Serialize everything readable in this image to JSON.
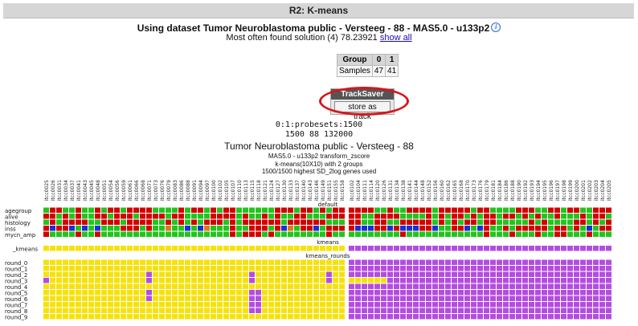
{
  "window": {
    "title": "R2: K-means"
  },
  "dataset": {
    "text": "Using dataset Tumor Neuroblastoma public - Versteeg - 88 - MAS5.0 - u133p2",
    "info_icon": "info-icon"
  },
  "solution": {
    "text": "Most often found solution (4) 78.23921",
    "link": "show all"
  },
  "group_table": {
    "headers": [
      "Group",
      "0",
      "1"
    ],
    "row_label": "Samples",
    "values": [
      "47",
      "41"
    ]
  },
  "tracksaver": {
    "title": "TrackSaver",
    "button": "store as track",
    "highlight_color": "#d6161c"
  },
  "probesets_line": "0:1:probesets:1500",
  "counts_line": "1500 88 132000",
  "heatmap": {
    "title": "Tumor Neuroblastoma public - Versteeg - 88",
    "subtitle1": "MAS5.0 - u133p2 transform_zscore",
    "subtitle2": "k-means(10X10) with 2 groups",
    "subtitle3": "1500/1500 highest SD_2log genes used",
    "section_default": "default",
    "section_kmeans": "kmeans",
    "section_rounds": "kmeans_rounds",
    "track_labels_default": [
      "agegroup",
      "alive",
      "histology",
      "inss",
      "mycn_amp"
    ],
    "track_label_kmeans": "_kmeans",
    "round_labels": [
      "round_0",
      "round_1",
      "round_2",
      "round_3",
      "round_4",
      "round_5",
      "round_6",
      "round_7",
      "round_8",
      "round_9"
    ],
    "colors": {
      "red": "#d40000",
      "green": "#22c51c",
      "yellow": "#f5e20a",
      "purple": "#b34de0",
      "blue": "#1930d8",
      "orange": "#e07a1a",
      "group_split_index": 47
    },
    "sample_ids": [
      "itcc0025",
      "itcc0026",
      "itcc0031",
      "itcc0034",
      "itcc0037",
      "itcc0041",
      "itcc0043",
      "itcc0045",
      "itcc0048",
      "itcc0051",
      "itcc0054",
      "itcc0056",
      "itcc0059",
      "itcc0061",
      "itcc0066",
      "itcc0068",
      "itcc0071",
      "itcc0073",
      "itcc0076",
      "itcc0079",
      "itcc0083",
      "itcc0086",
      "itcc0088",
      "itcc0091",
      "itcc0094",
      "itcc0097",
      "itcc0100",
      "itcc0102",
      "itcc0105",
      "itcc0107",
      "itcc0110",
      "itcc0113",
      "itcc0115",
      "itcc0118",
      "itcc0121",
      "itcc0124",
      "itcc0127",
      "itcc0130",
      "itcc0133",
      "itcc0137",
      "itcc0140",
      "itcc0143",
      "itcc0146",
      "itcc0149",
      "itcc0151",
      "itcc0155",
      "itcc0158",
      "itcc0102",
      "itcc0104",
      "itcc0111",
      "itcc0114",
      "itcc0120",
      "itcc0126",
      "itcc0131",
      "itcc0134",
      "itcc0138",
      "itcc0141",
      "itcc0144",
      "itcc0148",
      "itcc0152",
      "itcc0156",
      "itcc0160",
      "itcc0162",
      "itcc0165",
      "itcc0168",
      "itcc0170",
      "itcc0173",
      "itcc0176",
      "itcc0179",
      "itcc0181",
      "itcc0184",
      "itcc0186",
      "itcc0188",
      "itcc0190",
      "itcc0192",
      "itcc0193",
      "itcc0194",
      "itcc0195",
      "itcc0196",
      "itcc0197",
      "itcc0198",
      "itcc0199",
      "itcc0200",
      "itcc0201",
      "itcc0202",
      "itcc0203",
      "itcc0204",
      "itcc0205"
    ]
  }
}
